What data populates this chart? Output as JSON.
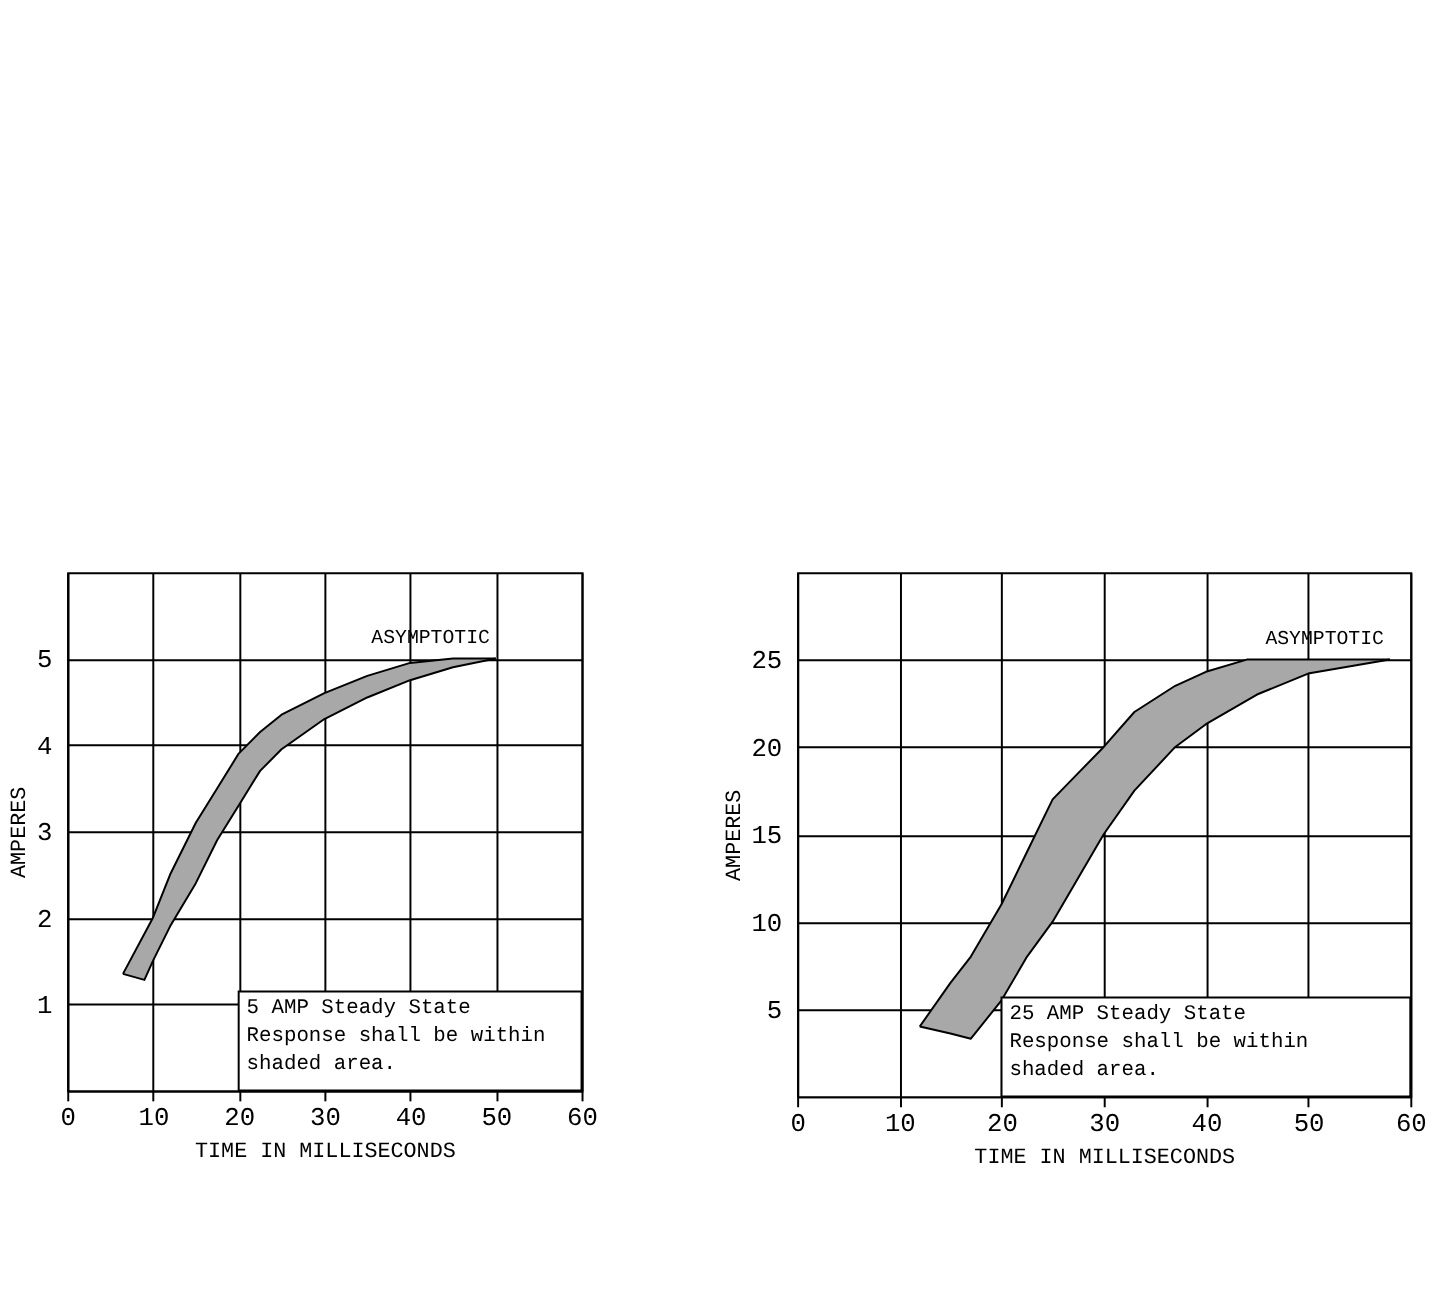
{
  "chart_data": [
    {
      "type": "line",
      "xlabel": "TIME IN MILLISECONDS",
      "ylabel": "AMPERES",
      "xlim": [
        0,
        60
      ],
      "xticks": [
        0,
        10,
        20,
        30,
        40,
        50,
        60
      ],
      "ylim": [
        0,
        6
      ],
      "yticks": [
        1,
        2,
        3,
        4,
        5
      ],
      "grid": true,
      "marker": "none",
      "series": [
        {
          "color": "#000000",
          "x": [
            6.5,
            10,
            12,
            15,
            17.5,
            20,
            22.5,
            25,
            30,
            35,
            40,
            45,
            50
          ],
          "values": [
            1.35,
            2.0,
            2.5,
            3.1,
            3.5,
            3.9,
            4.15,
            4.35,
            4.6,
            4.8,
            4.95,
            5.0,
            5.0
          ]
        },
        {
          "color": "#000000",
          "x": [
            6.5,
            9,
            10,
            12,
            15,
            17.5,
            20,
            22.5,
            25,
            30,
            35,
            40,
            45,
            50
          ],
          "values": [
            1.35,
            1.28,
            1.5,
            1.9,
            2.4,
            2.9,
            3.3,
            3.7,
            3.95,
            4.3,
            4.55,
            4.75,
            4.9,
            5.0
          ]
        }
      ],
      "annotations": [
        {
          "text": "ASYMPTOTIC",
          "x": 50,
          "y": 5
        },
        "5 AMP Steady State\nResponse shall be within\nshaded area."
      ]
    },
    {
      "type": "line",
      "xlabel": "TIME IN MILLISECONDS",
      "ylabel": "AMPERES",
      "xlim": [
        0,
        60
      ],
      "xticks": [
        0,
        10,
        20,
        30,
        40,
        50,
        60
      ],
      "ylim": [
        0,
        30
      ],
      "yticks": [
        5,
        10,
        15,
        20,
        25
      ],
      "grid": true,
      "marker": "none",
      "series": [
        {
          "color": "#000000",
          "x": [
            12,
            15,
            17,
            20,
            22.5,
            25,
            27.5,
            30,
            33,
            37,
            40,
            44,
            50,
            58
          ],
          "values": [
            4,
            6.5,
            8,
            11,
            14,
            17,
            18.5,
            20,
            22,
            23.5,
            24.3,
            25,
            25,
            25
          ]
        },
        {
          "color": "#000000",
          "x": [
            12,
            15,
            17,
            20,
            22.5,
            25,
            27.5,
            30,
            33,
            37,
            40,
            45,
            50,
            58
          ],
          "values": [
            4,
            3.6,
            3.3,
            5.5,
            8,
            10,
            12.5,
            15,
            17.5,
            20,
            21.3,
            23,
            24.2,
            25
          ]
        }
      ],
      "annotations": [
        {
          "text": "ASYMPTOTIC",
          "x": 58,
          "y": 25
        },
        "25 AMP Steady State\nResponse shall be within\nshaded area."
      ]
    }
  ]
}
